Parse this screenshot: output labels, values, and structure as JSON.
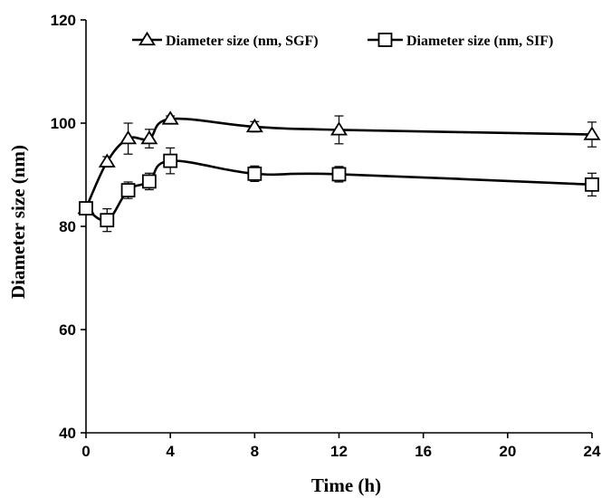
{
  "chart_data": {
    "type": "line",
    "title": "",
    "xlabel": "Time (h)",
    "ylabel": "Diameter size (nm)",
    "xlim": [
      0,
      24
    ],
    "ylim": [
      40,
      120
    ],
    "xticks": [
      0,
      4,
      8,
      12,
      16,
      20,
      24
    ],
    "yticks": [
      40,
      60,
      80,
      100,
      120
    ],
    "grid": false,
    "legend_position": "top",
    "series": [
      {
        "name": "Diameter size (nm, SGF)",
        "marker": "triangle",
        "x": [
          0,
          1,
          2,
          3,
          4,
          8,
          12,
          24
        ],
        "y": [
          83.5,
          92.5,
          97.0,
          97.0,
          100.8,
          99.3,
          98.7,
          97.8
        ],
        "err": [
          0.8,
          1.0,
          3.0,
          1.8,
          0.6,
          1.0,
          2.7,
          2.4
        ]
      },
      {
        "name": "Diameter size (nm, SIF)",
        "marker": "square",
        "x": [
          0,
          1,
          2,
          3,
          4,
          8,
          12,
          24
        ],
        "y": [
          83.5,
          81.2,
          87.0,
          88.7,
          92.7,
          90.2,
          90.1,
          88.1
        ],
        "err": [
          0.8,
          2.2,
          1.6,
          1.6,
          2.5,
          1.5,
          1.5,
          2.2
        ]
      }
    ]
  }
}
